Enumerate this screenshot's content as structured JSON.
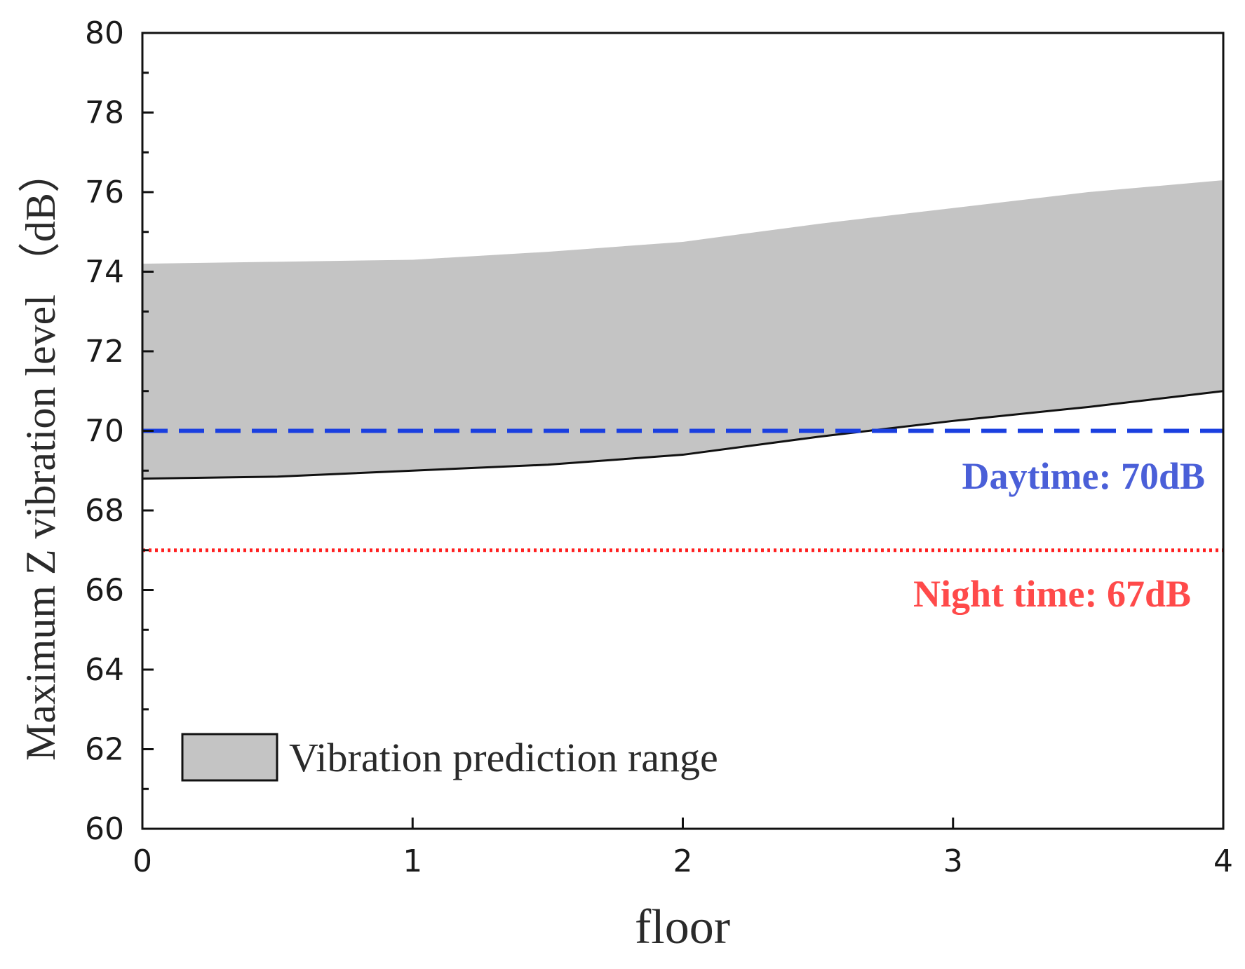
{
  "chart_data": {
    "type": "area",
    "title": "",
    "xlabel": "floor",
    "ylabel": "Maximum Z vibration level （dB）",
    "xlim": [
      0,
      4
    ],
    "ylim": [
      60,
      80
    ],
    "x_ticks": [
      0,
      1,
      2,
      3,
      4
    ],
    "y_ticks": [
      60,
      62,
      64,
      66,
      68,
      70,
      72,
      74,
      76,
      78,
      80
    ],
    "grid": false,
    "legend_position": "bottom-left",
    "series": [
      {
        "name": "Vibration prediction range",
        "kind": "band",
        "color": "#c4c4c4",
        "edge_color": "#111111",
        "x": [
          0,
          0.5,
          1,
          1.5,
          2,
          2.5,
          3,
          3.5,
          4
        ],
        "upper": [
          74.2,
          74.25,
          74.3,
          74.5,
          74.75,
          75.2,
          75.6,
          76.0,
          76.3
        ],
        "lower": [
          68.8,
          68.85,
          69.0,
          69.15,
          69.4,
          69.85,
          70.25,
          70.6,
          71.0
        ]
      }
    ],
    "reference_lines": [
      {
        "name": "Daytime",
        "value": 70,
        "label": "Daytime: 70dB",
        "color": "#1a3fe0",
        "label_color": "#4a5fd8",
        "style": "dashed"
      },
      {
        "name": "Night time",
        "value": 67,
        "label": "Night time: 67dB",
        "color": "#ff2020",
        "label_color": "#ff4a4a",
        "style": "dotted"
      }
    ]
  }
}
